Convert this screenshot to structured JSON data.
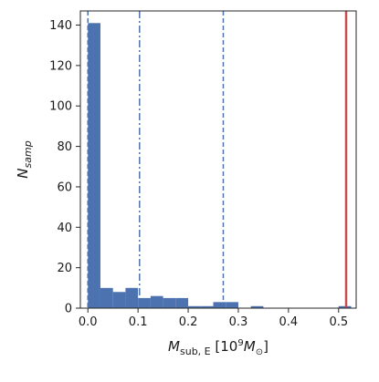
{
  "chart_data": {
    "type": "bar",
    "subtype": "histogram",
    "title": "",
    "xlabel": {
      "main": "M",
      "sub": "sub, E",
      "rest": " [10",
      "sup": "9",
      "unit": "M",
      "unit_sub": "⊙",
      "close": "]"
    },
    "ylabel": {
      "main": "N",
      "sub": "samp"
    },
    "xlim": [
      -0.015,
      0.535
    ],
    "ylim": [
      0,
      147
    ],
    "xticks": [
      0.0,
      0.1,
      0.2,
      0.3,
      0.4,
      0.5
    ],
    "xtick_labels": [
      "0.0",
      "0.1",
      "0.2",
      "0.3",
      "0.4",
      "0.5"
    ],
    "yticks": [
      0,
      20,
      40,
      60,
      80,
      100,
      120,
      140
    ],
    "ytick_labels": [
      "0",
      "20",
      "40",
      "60",
      "80",
      "100",
      "120",
      "140"
    ],
    "bins": [
      {
        "x0": 0.0,
        "x1": 0.025,
        "count": 141
      },
      {
        "x0": 0.025,
        "x1": 0.05,
        "count": 10
      },
      {
        "x0": 0.05,
        "x1": 0.075,
        "count": 8
      },
      {
        "x0": 0.075,
        "x1": 0.1,
        "count": 10
      },
      {
        "x0": 0.1,
        "x1": 0.125,
        "count": 5
      },
      {
        "x0": 0.125,
        "x1": 0.15,
        "count": 6
      },
      {
        "x0": 0.15,
        "x1": 0.175,
        "count": 5
      },
      {
        "x0": 0.175,
        "x1": 0.2,
        "count": 5
      },
      {
        "x0": 0.2,
        "x1": 0.225,
        "count": 1
      },
      {
        "x0": 0.225,
        "x1": 0.25,
        "count": 1
      },
      {
        "x0": 0.25,
        "x1": 0.275,
        "count": 3
      },
      {
        "x0": 0.275,
        "x1": 0.3,
        "count": 3
      },
      {
        "x0": 0.3,
        "x1": 0.325,
        "count": 0
      },
      {
        "x0": 0.325,
        "x1": 0.35,
        "count": 1
      },
      {
        "x0": 0.35,
        "x1": 0.375,
        "count": 0
      },
      {
        "x0": 0.375,
        "x1": 0.4,
        "count": 0
      },
      {
        "x0": 0.4,
        "x1": 0.425,
        "count": 0
      },
      {
        "x0": 0.425,
        "x1": 0.45,
        "count": 0
      },
      {
        "x0": 0.45,
        "x1": 0.475,
        "count": 0
      },
      {
        "x0": 0.475,
        "x1": 0.5,
        "count": 0
      },
      {
        "x0": 0.5,
        "x1": 0.525,
        "count": 1
      }
    ],
    "vlines": [
      {
        "x": 0.0,
        "style": "dashed",
        "color": "#4c72b0"
      },
      {
        "x": 0.103,
        "style": "dashdot",
        "color": "#4c72b0"
      },
      {
        "x": 0.27,
        "style": "dashed",
        "color": "#4c72b0"
      },
      {
        "x": 0.515,
        "style": "solid",
        "color": "#c44e52"
      }
    ],
    "bar_color": "#4c72b0",
    "grid": false
  }
}
